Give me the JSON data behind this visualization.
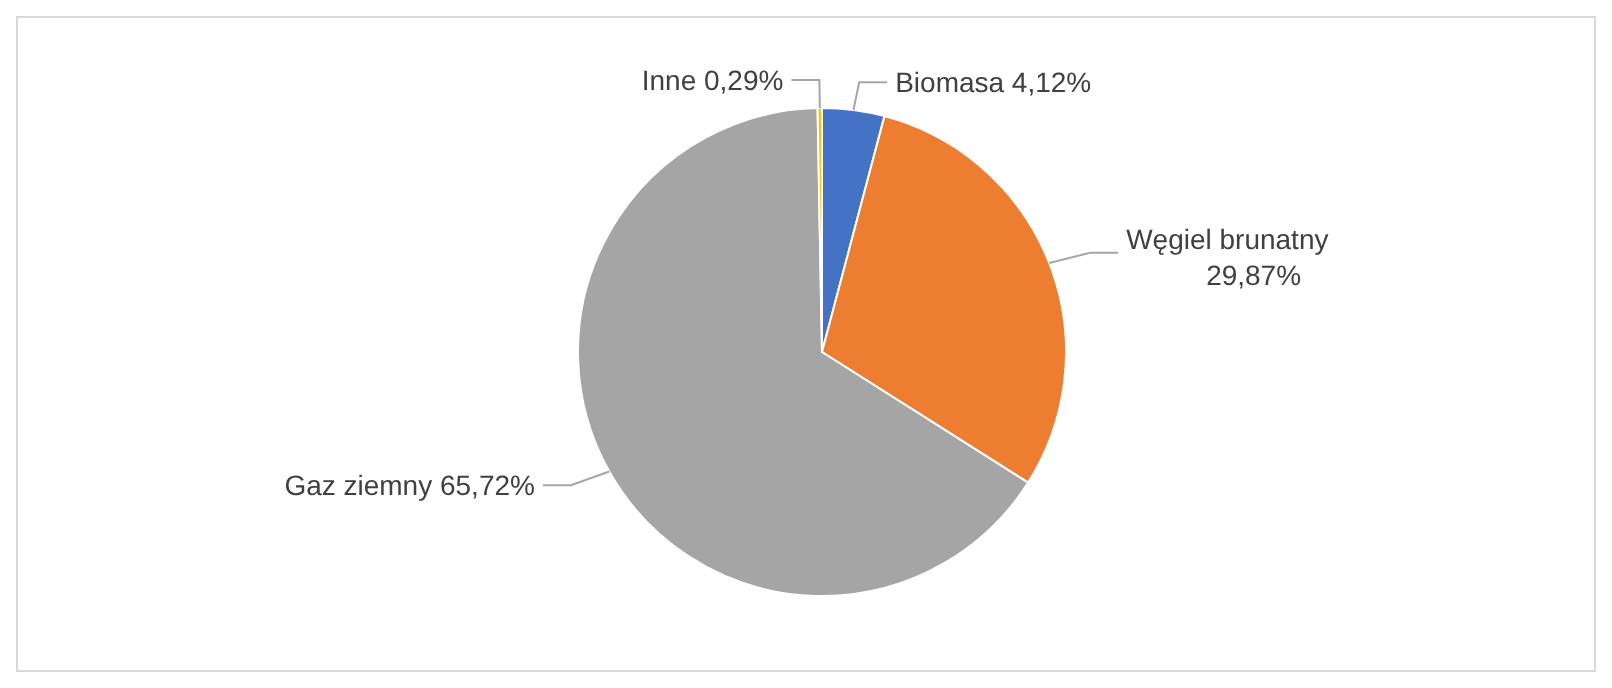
{
  "chart_data": {
    "type": "pie",
    "categories": [
      "Biomasa",
      "Węgiel brunatny",
      "Gaz ziemny",
      "Inne"
    ],
    "values": [
      4.12,
      29.87,
      65.72,
      0.29
    ],
    "colors": [
      "#4472c4",
      "#ed7d31",
      "#a5a5a5",
      "#ffc000"
    ],
    "value_labels": [
      "4,12%",
      "29,87%",
      "65,72%",
      "0,29%"
    ]
  }
}
